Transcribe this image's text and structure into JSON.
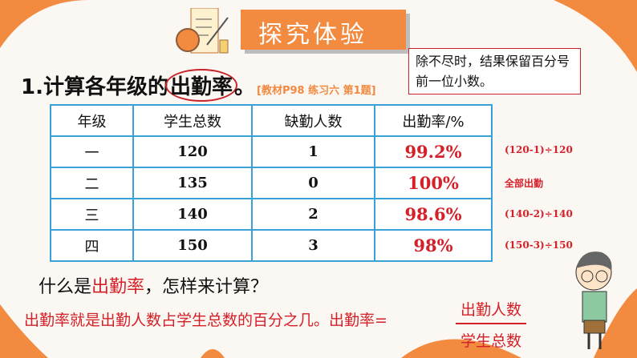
{
  "banner": {
    "title": "探究体验"
  },
  "question": {
    "number": "1.",
    "prefix": "计算各年级的",
    "highlight": "出勤率",
    "suffix": "。",
    "reference": "[教材P98 练习六 第1题]"
  },
  "callout": {
    "text": "除不尽时，结果保留百分号前一位小数。"
  },
  "table": {
    "headers": [
      "年级",
      "学生总数",
      "缺勤人数",
      "出勤率/%"
    ],
    "rows": [
      {
        "grade": "一",
        "total": "120",
        "absent": "1",
        "rate": "99.2%",
        "note": "(120-1)÷120"
      },
      {
        "grade": "二",
        "total": "135",
        "absent": "0",
        "rate": "100%",
        "note": "全部出勤"
      },
      {
        "grade": "三",
        "total": "140",
        "absent": "2",
        "rate": "98.6%",
        "note": "(140-2)÷140"
      },
      {
        "grade": "四",
        "total": "150",
        "absent": "3",
        "rate": "98%",
        "note": "(150-3)÷150"
      }
    ]
  },
  "prompt": {
    "a": "什么是",
    "b": "出勤率",
    "c": "，怎样来计算？"
  },
  "answer": {
    "text": "出勤率就是出勤人数占学生总数的百分之几。出勤率=",
    "numerator": "出勤人数",
    "denominator": "学生总数"
  },
  "colors": {
    "accent": "#f28a40",
    "red": "#d42028",
    "table_border": "#3aa0d8"
  }
}
